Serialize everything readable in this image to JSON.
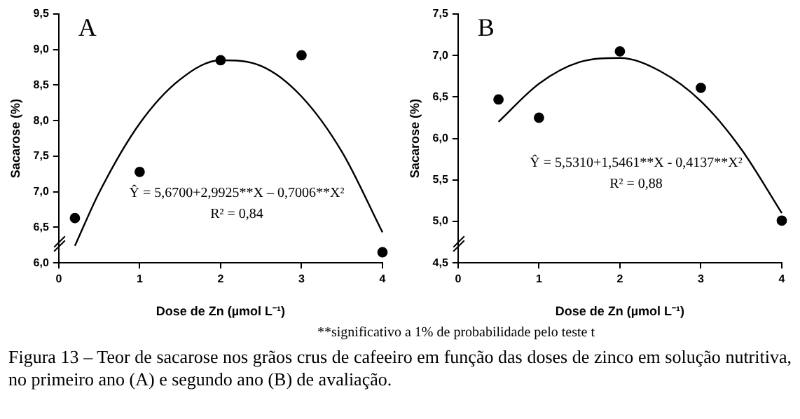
{
  "chart_data": [
    {
      "type": "scatter",
      "title": "A",
      "xlabel": "Dose de Zn (µmol L⁻¹)",
      "ylabel": "Sacarose (%)",
      "xlim": [
        0,
        4
      ],
      "xticks": [
        0,
        1,
        2,
        3,
        4
      ],
      "ylim": [
        6,
        9.5
      ],
      "yticks": [
        {
          "value": 6,
          "label": "6,0"
        },
        {
          "value": 6.5,
          "label": "6,5"
        },
        {
          "value": 7,
          "label": "7,0"
        },
        {
          "value": 7.5,
          "label": "7,5"
        },
        {
          "value": 8,
          "label": "8,0"
        },
        {
          "value": 8.5,
          "label": "8,5"
        },
        {
          "value": 9,
          "label": "9,0"
        },
        {
          "value": 9.5,
          "label": "9,5"
        }
      ],
      "grid": false,
      "legend": false,
      "series": [
        {
          "type": "scatter",
          "color": "#000000",
          "marker": "circle",
          "x": [
            0.2,
            1,
            2,
            3,
            4
          ],
          "values": [
            6.63,
            7.28,
            8.85,
            8.92,
            6.15
          ]
        },
        {
          "type": "line",
          "color": "#000000",
          "marker": "none",
          "x": [
            0.2,
            0.5,
            1,
            1.5,
            2,
            2.5,
            3,
            3.5,
            4
          ],
          "values": [
            6.24,
            6.99,
            7.96,
            8.58,
            8.85,
            8.77,
            8.34,
            7.56,
            6.43
          ]
        }
      ],
      "annotations": [
        "Ŷ = 5,6700+2,9925**X – 0,7006**X²",
        "R² = 0,84"
      ]
    },
    {
      "type": "scatter",
      "title": "B",
      "xlabel": "Dose de Zn (µmol L⁻¹)",
      "ylabel": "Sacarose (%)",
      "xlim": [
        0,
        4
      ],
      "xticks": [
        0,
        1,
        2,
        3,
        4
      ],
      "ylim": [
        4.5,
        7.5
      ],
      "yticks": [
        {
          "value": 4.5,
          "label": "4,5"
        },
        {
          "value": 5,
          "label": "5,0"
        },
        {
          "value": 5.5,
          "label": "5,5"
        },
        {
          "value": 6,
          "label": "6,0"
        },
        {
          "value": 6.5,
          "label": "6,5"
        },
        {
          "value": 7,
          "label": "7,0"
        },
        {
          "value": 7.5,
          "label": "7,5"
        }
      ],
      "grid": false,
      "legend": false,
      "series": [
        {
          "type": "scatter",
          "color": "#000000",
          "marker": "circle",
          "x": [
            0.5,
            1,
            2,
            3,
            4
          ],
          "values": [
            6.47,
            6.25,
            7.05,
            6.61,
            5.01
          ]
        },
        {
          "type": "line",
          "color": "#000000",
          "marker": "none",
          "x": [
            0.5,
            1,
            1.5,
            2,
            2.5,
            3,
            3.5,
            4
          ],
          "values": [
            6.2,
            6.66,
            6.92,
            6.97,
            6.81,
            6.45,
            5.87,
            5.1
          ]
        }
      ],
      "annotations": [
        "Ŷ = 5,5310+1,5461**X - 0,4137**X²",
        "R² = 0,88",
        "**significativo a 1% de probabilidade pelo teste t",
        "Figura 13 – Teor de sacarose nos grãos crus de cafeeiro em função das doses de zinco em solução nutritiva, no primeiro ano (A) e segundo ano (B) de avaliação."
      ]
    }
  ]
}
